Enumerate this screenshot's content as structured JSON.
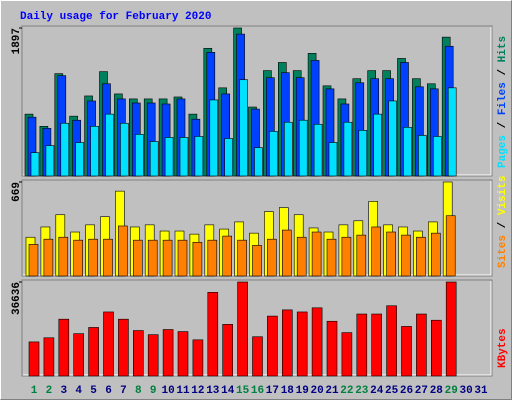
{
  "chart_data": [
    {
      "type": "bar",
      "title": "Daily usage for February 2020",
      "ylim": [
        0,
        1897
      ],
      "yticks": [
        1897
      ],
      "legend_separator": " / ",
      "series": [
        {
          "name": "Pages",
          "color": "#00E0FF",
          "values": [
            299,
            390,
            676,
            429,
            637,
            793,
            676,
            533,
            442,
            494,
            494,
            507,
            975,
            481,
            1234,
            364,
            572,
            689,
            715,
            663,
            429,
            689,
            585,
            793,
            962,
            624,
            520,
            507,
            1130,
            null,
            null
          ]
        },
        {
          "name": "Files",
          "color": "#0040FF",
          "values": [
            754,
            611,
            1286,
            715,
            962,
            1182,
            988,
            936,
            936,
            923,
            988,
            728,
            1585,
            1052,
            1819,
            858,
            1260,
            1325,
            1260,
            1481,
            1117,
            923,
            1195,
            1247,
            1247,
            1455,
            1143,
            1117,
            1663,
            null,
            null
          ]
        },
        {
          "name": "Hits",
          "color": "#00805C",
          "values": [
            793,
            637,
            1312,
            767,
            1026,
            1338,
            1052,
            988,
            988,
            988,
            1013,
            793,
            1637,
            1130,
            1897,
            884,
            1351,
            1455,
            1351,
            1572,
            1156,
            988,
            1247,
            1351,
            1351,
            1507,
            1247,
            1182,
            1780,
            null,
            null
          ]
        }
      ]
    },
    {
      "type": "bar",
      "ylim": [
        0,
        669
      ],
      "yticks": [
        669
      ],
      "legend_separator": " / ",
      "series": [
        {
          "name": "Sites",
          "color": "#FF8000",
          "values": [
            225,
            262,
            276,
            255,
            262,
            262,
            356,
            255,
            255,
            255,
            255,
            240,
            255,
            284,
            255,
            218,
            262,
            327,
            276,
            313,
            262,
            276,
            291,
            349,
            313,
            291,
            276,
            305,
            429,
            null,
            null
          ]
        },
        {
          "name": "Visits",
          "color": "#FFFF00",
          "values": [
            276,
            349,
            436,
            313,
            364,
            422,
            604,
            349,
            364,
            320,
            320,
            298,
            364,
            334,
            385,
            305,
            458,
            487,
            436,
            342,
            313,
            364,
            393,
            531,
            364,
            349,
            320,
            385,
            669,
            null,
            null
          ]
        }
      ]
    },
    {
      "type": "bar",
      "ylim": [
        0,
        36636
      ],
      "yticks": [
        36636
      ],
      "categories": [
        "1",
        "2",
        "3",
        "4",
        "5",
        "6",
        "7",
        "8",
        "9",
        "10",
        "11",
        "12",
        "13",
        "14",
        "15",
        "16",
        "17",
        "18",
        "19",
        "20",
        "21",
        "22",
        "23",
        "24",
        "25",
        "26",
        "27",
        "28",
        "29",
        "30",
        "31"
      ],
      "category_color": "#000080",
      "weekend_color": "#008040",
      "weekend_indices": [
        0,
        1,
        7,
        8,
        14,
        15,
        21,
        22,
        28
      ],
      "series": [
        {
          "name": "KBytes",
          "color": "#FF0000",
          "values": [
            13286,
            14896,
            22143,
            16507,
            18923,
            24961,
            22143,
            17715,
            16104,
            18117,
            17312,
            14091,
            32610,
            20130,
            36636,
            15299,
            23351,
            25766,
            24961,
            26571,
            21338,
            16909,
            24156,
            24156,
            27376,
            19325,
            24156,
            21741,
            36636,
            null,
            null
          ]
        }
      ]
    }
  ]
}
